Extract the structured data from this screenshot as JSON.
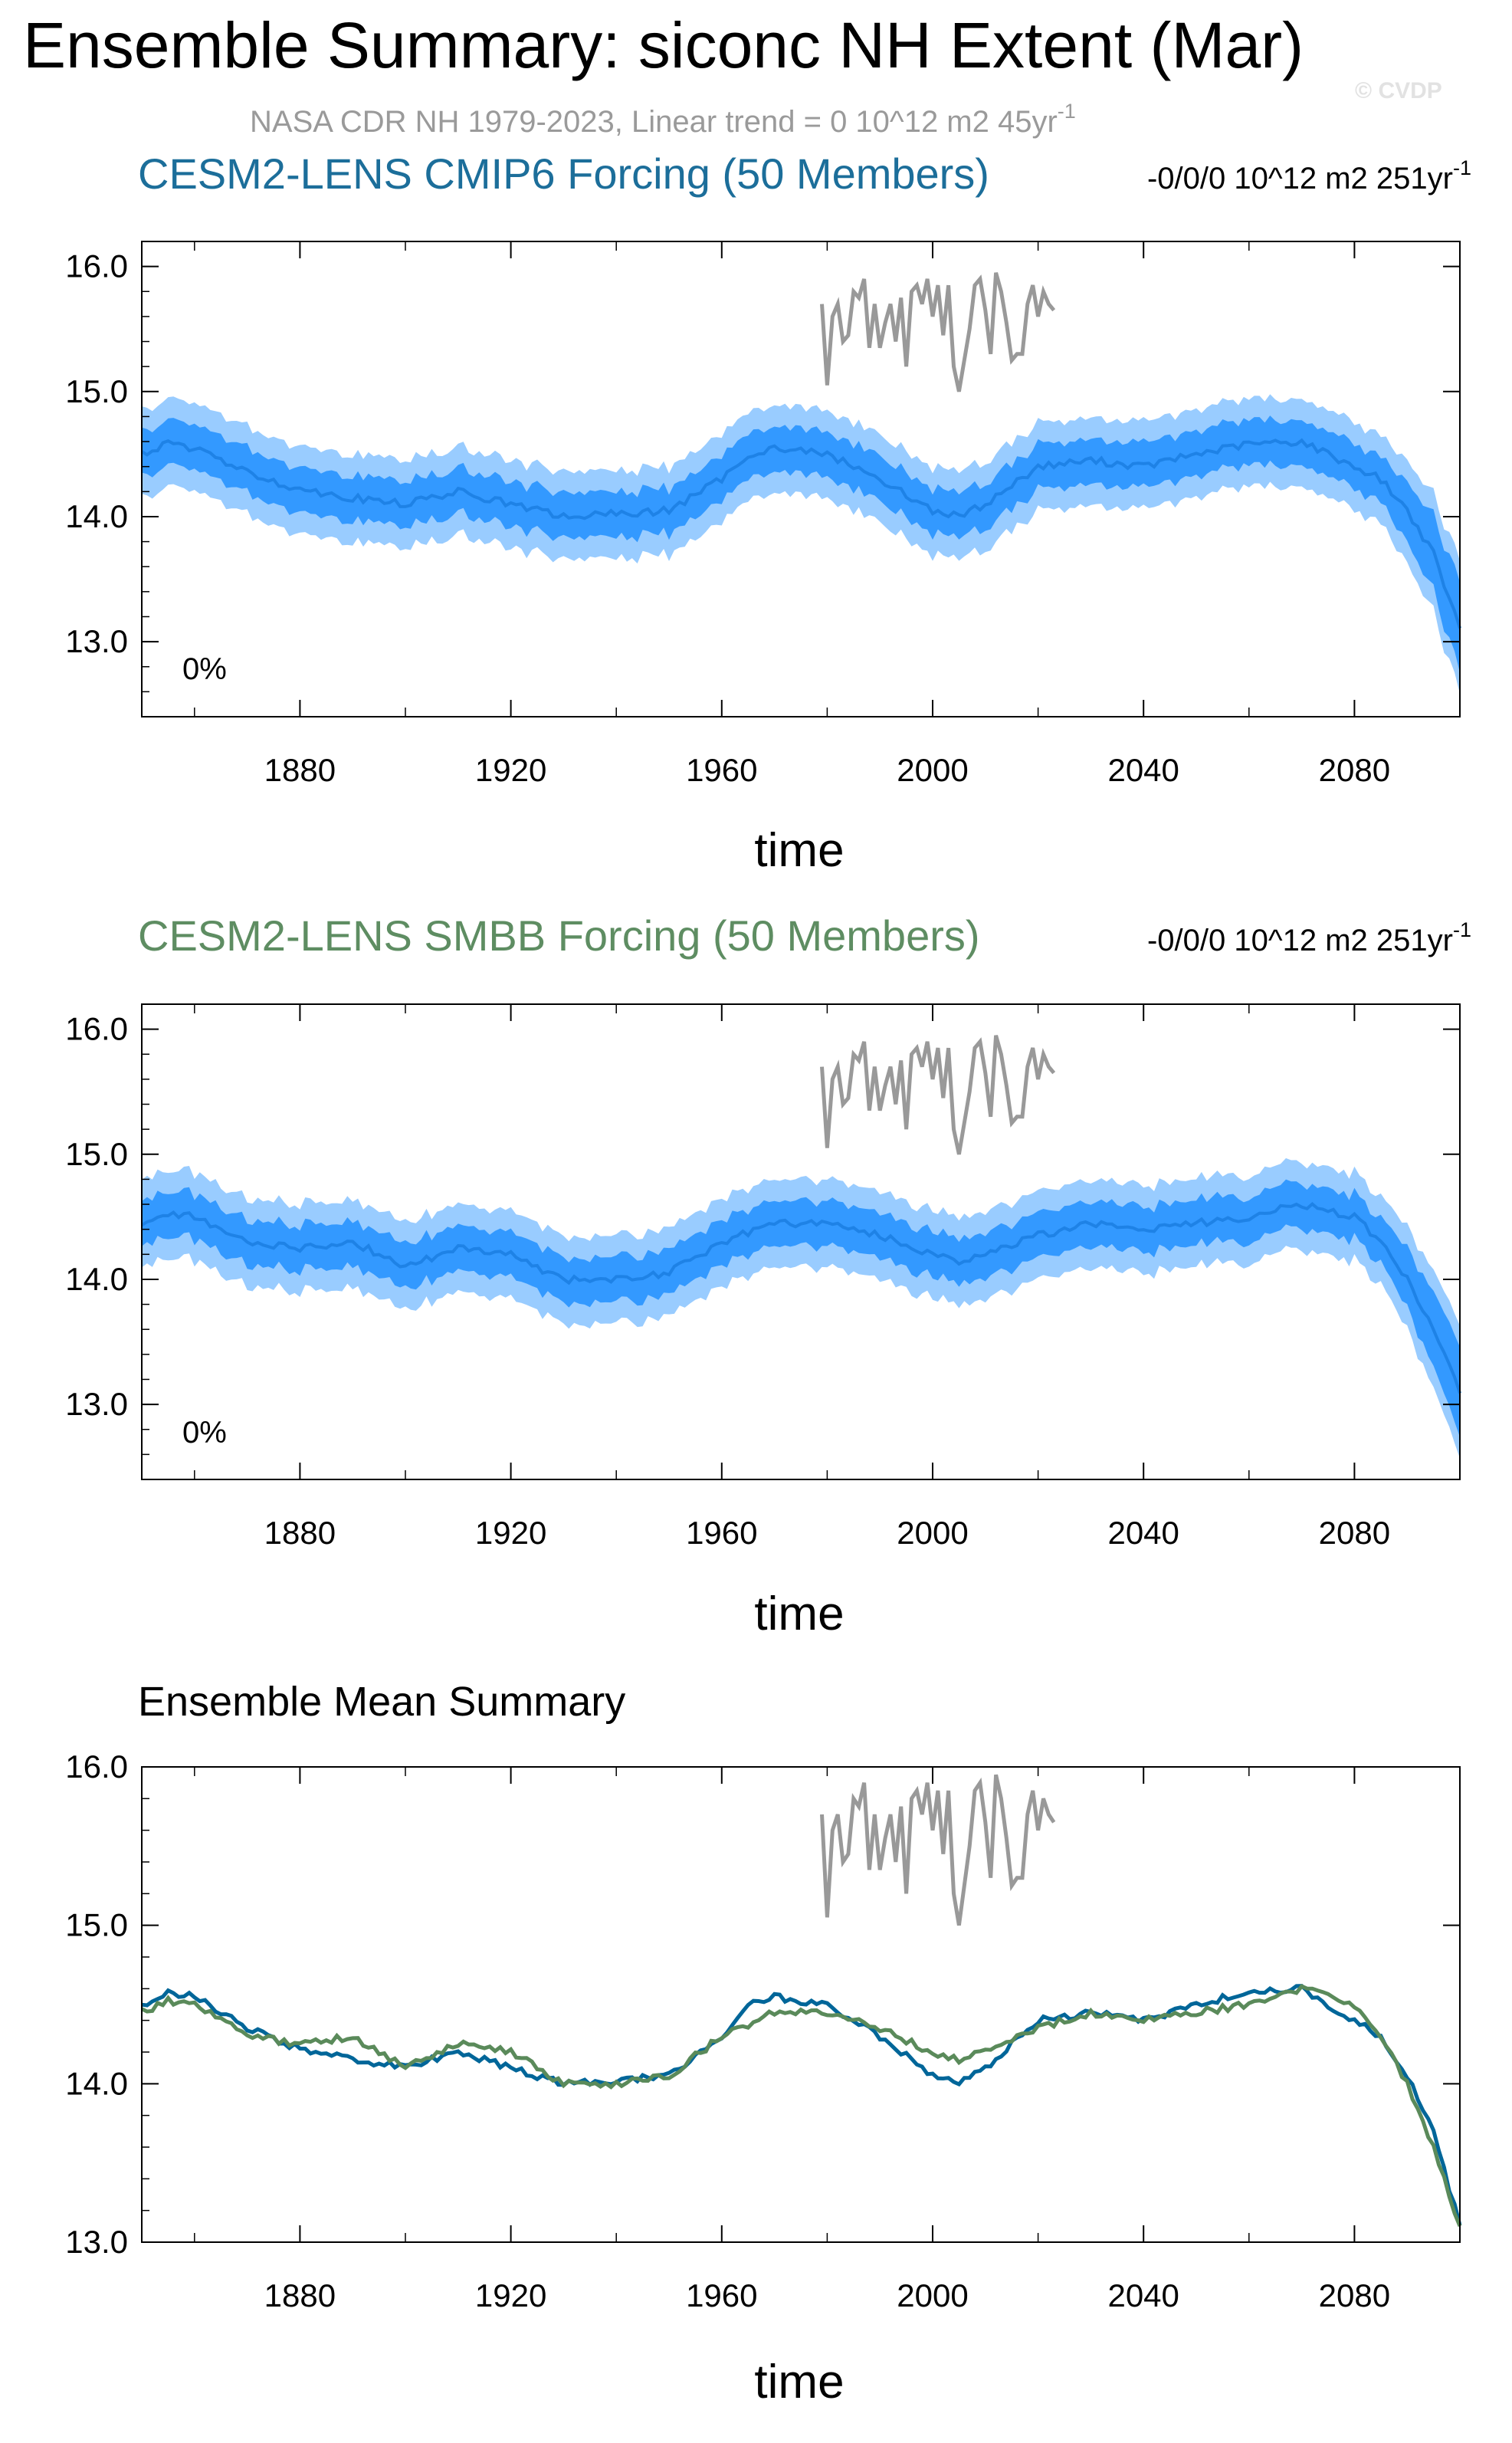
{
  "title": "Ensemble Summary: siconc NH Extent (Mar)",
  "subtitle": "NASA CDR NH 1979-2023, Linear trend = 0 10^12 m2 45yr",
  "subtitle_sup": "-1",
  "watermark": "© CVDP",
  "colors": {
    "obs": "#999999",
    "band_outer": "#99ccff",
    "band_inner": "#3399ff",
    "mean_line": "#1e82e6",
    "cmip6": "#006699",
    "smbb": "#5a8a5a",
    "axis": "#000000"
  },
  "chart_data": [
    {
      "type": "line",
      "title": "CESM2-LENS CMIP6 Forcing (50 Members)",
      "title_color": "#1c6e9a",
      "trend_label": "-0/0/0 10^12 m2 251yr",
      "trend_sup": "-1",
      "percent_label": "0%",
      "xlabel": "time",
      "ylabel": "",
      "xlim": [
        1850,
        2100
      ],
      "ylim": [
        12.4,
        16.2
      ],
      "xticks": [
        1880,
        1920,
        1960,
        2000,
        2040,
        2080
      ],
      "yticks": [
        13.0,
        14.0,
        15.0,
        16.0
      ],
      "ytick_labels": [
        "13.0",
        "14.0",
        "15.0",
        "16.0"
      ],
      "ensemble_mean_knots": {
        "x": [
          1850,
          1855,
          1860,
          1870,
          1880,
          1890,
          1900,
          1910,
          1920,
          1930,
          1940,
          1950,
          1960,
          1965,
          1970,
          1980,
          1990,
          2000,
          2005,
          2010,
          2020,
          2030,
          2040,
          2050,
          2060,
          2070,
          2080,
          2085,
          2090,
          2095,
          2100
        ],
        "y": [
          14.5,
          14.58,
          14.55,
          14.35,
          14.22,
          14.15,
          14.1,
          14.2,
          14.1,
          14.0,
          14.02,
          14.05,
          14.3,
          14.5,
          14.55,
          14.5,
          14.3,
          14.05,
          14.0,
          14.1,
          14.4,
          14.45,
          14.4,
          14.5,
          14.58,
          14.6,
          14.4,
          14.3,
          14.05,
          13.7,
          13.1
        ]
      },
      "band_inner_halfwidth": 0.18,
      "band_outer_halfwidth": 0.35,
      "observed": {
        "name": "NASA CDR NH",
        "x": [
          1979,
          1980,
          1981,
          1982,
          1983,
          1984,
          1985,
          1986,
          1987,
          1988,
          1989,
          1990,
          1991,
          1992,
          1993,
          1994,
          1995,
          1996,
          1997,
          1998,
          1999,
          2000,
          2001,
          2002,
          2003,
          2004,
          2005,
          2006,
          2007,
          2008,
          2009,
          2010,
          2011,
          2012,
          2013,
          2014,
          2015,
          2016,
          2017,
          2018,
          2019,
          2020,
          2021,
          2022,
          2023
        ],
        "y": [
          15.7,
          15.05,
          15.6,
          15.7,
          15.4,
          15.45,
          15.8,
          15.75,
          15.9,
          15.35,
          15.7,
          15.35,
          15.55,
          15.7,
          15.4,
          15.75,
          15.2,
          15.8,
          15.85,
          15.7,
          15.9,
          15.6,
          15.85,
          15.45,
          15.85,
          15.2,
          15.0,
          15.25,
          15.5,
          15.85,
          15.9,
          15.65,
          15.3,
          15.95,
          15.8,
          15.55,
          15.25,
          15.3,
          15.3,
          15.7,
          15.85,
          15.6,
          15.8,
          15.7,
          15.65
        ]
      }
    },
    {
      "type": "line",
      "title": "CESM2-LENS SMBB Forcing (50 Members)",
      "title_color": "#5e8d62",
      "trend_label": "-0/0/0 10^12 m2 251yr",
      "trend_sup": "-1",
      "percent_label": "0%",
      "xlabel": "time",
      "ylabel": "",
      "xlim": [
        1850,
        2100
      ],
      "ylim": [
        12.4,
        16.2
      ],
      "xticks": [
        1880,
        1920,
        1960,
        2000,
        2040,
        2080
      ],
      "yticks": [
        13.0,
        14.0,
        15.0,
        16.0
      ],
      "ytick_labels": [
        "13.0",
        "14.0",
        "15.0",
        "16.0"
      ],
      "ensemble_mean_knots": {
        "x": [
          1850,
          1855,
          1860,
          1870,
          1880,
          1890,
          1900,
          1910,
          1920,
          1930,
          1940,
          1950,
          1960,
          1970,
          1980,
          1990,
          2000,
          2005,
          2010,
          2020,
          2030,
          2040,
          2050,
          2060,
          2070,
          2080,
          2085,
          2090,
          2095,
          2100
        ],
        "y": [
          14.45,
          14.52,
          14.5,
          14.3,
          14.25,
          14.3,
          14.1,
          14.25,
          14.2,
          14.0,
          14.0,
          14.05,
          14.3,
          14.45,
          14.45,
          14.35,
          14.2,
          14.15,
          14.2,
          14.35,
          14.45,
          14.4,
          14.45,
          14.5,
          14.6,
          14.5,
          14.3,
          14.0,
          13.6,
          13.1
        ]
      },
      "band_inner_halfwidth": 0.18,
      "band_outer_halfwidth": 0.35,
      "observed": {
        "name": "NASA CDR NH",
        "x": [
          1979,
          1980,
          1981,
          1982,
          1983,
          1984,
          1985,
          1986,
          1987,
          1988,
          1989,
          1990,
          1991,
          1992,
          1993,
          1994,
          1995,
          1996,
          1997,
          1998,
          1999,
          2000,
          2001,
          2002,
          2003,
          2004,
          2005,
          2006,
          2007,
          2008,
          2009,
          2010,
          2011,
          2012,
          2013,
          2014,
          2015,
          2016,
          2017,
          2018,
          2019,
          2020,
          2021,
          2022,
          2023
        ],
        "y": [
          15.7,
          15.05,
          15.6,
          15.7,
          15.4,
          15.45,
          15.8,
          15.75,
          15.9,
          15.35,
          15.7,
          15.35,
          15.55,
          15.7,
          15.4,
          15.75,
          15.2,
          15.8,
          15.85,
          15.7,
          15.9,
          15.6,
          15.85,
          15.45,
          15.85,
          15.2,
          15.0,
          15.25,
          15.5,
          15.85,
          15.9,
          15.65,
          15.3,
          15.95,
          15.8,
          15.55,
          15.25,
          15.3,
          15.3,
          15.7,
          15.85,
          15.6,
          15.8,
          15.7,
          15.65
        ]
      }
    },
    {
      "type": "line",
      "title": "Ensemble Mean Summary",
      "title_color": "#000000",
      "xlabel": "time",
      "ylabel": "",
      "xlim": [
        1850,
        2100
      ],
      "ylim": [
        13.0,
        16.0
      ],
      "xticks": [
        1880,
        1920,
        1960,
        2000,
        2040,
        2080
      ],
      "yticks": [
        13.0,
        14.0,
        15.0,
        16.0
      ],
      "ytick_labels": [
        "13.0",
        "14.0",
        "15.0",
        "16.0"
      ],
      "series": [
        {
          "name": "CESM2-LENS CMIP6 Forcing",
          "color": "#006699",
          "x": [
            1850,
            1855,
            1860,
            1870,
            1880,
            1890,
            1900,
            1910,
            1920,
            1930,
            1940,
            1950,
            1960,
            1965,
            1970,
            1980,
            1990,
            2000,
            2005,
            2010,
            2020,
            2030,
            2040,
            2050,
            2060,
            2070,
            2080,
            2085,
            2090,
            2095,
            2100
          ],
          "y": [
            14.5,
            14.58,
            14.55,
            14.35,
            14.22,
            14.15,
            14.1,
            14.2,
            14.1,
            14.0,
            14.02,
            14.05,
            14.3,
            14.5,
            14.55,
            14.5,
            14.3,
            14.05,
            14.0,
            14.1,
            14.4,
            14.45,
            14.4,
            14.5,
            14.58,
            14.6,
            14.4,
            14.3,
            14.05,
            13.7,
            13.1
          ]
        },
        {
          "name": "CESM2-LENS SMBB Forcing",
          "color": "#5a8a5a",
          "x": [
            1850,
            1855,
            1860,
            1870,
            1880,
            1890,
            1900,
            1910,
            1920,
            1930,
            1940,
            1950,
            1960,
            1970,
            1980,
            1990,
            2000,
            2005,
            2010,
            2020,
            2030,
            2040,
            2050,
            2060,
            2070,
            2080,
            2085,
            2090,
            2095,
            2100
          ],
          "y": [
            14.45,
            14.52,
            14.5,
            14.3,
            14.25,
            14.3,
            14.1,
            14.25,
            14.2,
            14.0,
            14.0,
            14.05,
            14.3,
            14.45,
            14.45,
            14.35,
            14.2,
            14.15,
            14.2,
            14.35,
            14.45,
            14.4,
            14.45,
            14.5,
            14.6,
            14.5,
            14.3,
            14.0,
            13.6,
            13.1
          ]
        }
      ],
      "observed": {
        "name": "NASA CDR NH",
        "x": [
          1979,
          1980,
          1981,
          1982,
          1983,
          1984,
          1985,
          1986,
          1987,
          1988,
          1989,
          1990,
          1991,
          1992,
          1993,
          1994,
          1995,
          1996,
          1997,
          1998,
          1999,
          2000,
          2001,
          2002,
          2003,
          2004,
          2005,
          2006,
          2007,
          2008,
          2009,
          2010,
          2011,
          2012,
          2013,
          2014,
          2015,
          2016,
          2017,
          2018,
          2019,
          2020,
          2021,
          2022,
          2023
        ],
        "y": [
          15.7,
          15.05,
          15.6,
          15.7,
          15.4,
          15.45,
          15.8,
          15.75,
          15.9,
          15.35,
          15.7,
          15.35,
          15.55,
          15.7,
          15.4,
          15.75,
          15.2,
          15.8,
          15.85,
          15.7,
          15.9,
          15.6,
          15.85,
          15.45,
          15.85,
          15.2,
          15.0,
          15.25,
          15.5,
          15.85,
          15.9,
          15.65,
          15.3,
          15.95,
          15.8,
          15.55,
          15.25,
          15.3,
          15.3,
          15.7,
          15.85,
          15.6,
          15.8,
          15.7,
          15.65
        ]
      }
    }
  ]
}
